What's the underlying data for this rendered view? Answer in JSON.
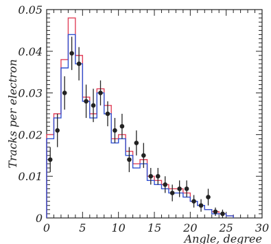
{
  "chart_data": {
    "type": "line",
    "title": "",
    "xlabel": "Angle, degree",
    "ylabel": "Tracks per electron",
    "xlim": [
      0,
      30
    ],
    "ylim": [
      0,
      0.05
    ],
    "x_ticks": [
      "0",
      "5",
      "10",
      "15",
      "20",
      "25",
      "30"
    ],
    "y_ticks": [
      "0",
      "0.01",
      "0.02",
      "0.03",
      "0.04",
      "0.05"
    ],
    "grid": false,
    "legend": "none",
    "bin_edges": [
      0,
      1,
      2,
      3,
      4,
      5,
      6,
      7,
      8,
      9,
      10,
      11,
      12,
      13,
      14,
      15,
      16,
      17,
      18,
      19,
      20,
      21,
      22,
      23,
      24,
      25,
      26
    ],
    "series": [
      {
        "kind": "histogram",
        "color": "#e0405a",
        "values": [
          0.02,
          0.025,
          0.038,
          0.048,
          0.039,
          0.029,
          0.025,
          0.031,
          0.027,
          0.019,
          0.02,
          0.016,
          0.013,
          0.014,
          0.01,
          0.009,
          0.008,
          0.007,
          0.007,
          0.006,
          0.004,
          0.003,
          0.002,
          0.0015,
          0.001,
          0.0005
        ]
      },
      {
        "kind": "histogram",
        "color": "#3050d0",
        "values": [
          0.019,
          0.024,
          0.036,
          0.044,
          0.037,
          0.028,
          0.024,
          0.03,
          0.025,
          0.018,
          0.019,
          0.015,
          0.012,
          0.013,
          0.009,
          0.008,
          0.007,
          0.006,
          0.006,
          0.005,
          0.004,
          0.003,
          0.002,
          0.001,
          0.001,
          0.0005
        ]
      },
      {
        "kind": "points",
        "color": "#222222",
        "x": [
          0.5,
          1.5,
          2.5,
          3.5,
          4.5,
          5.5,
          6.5,
          7.5,
          8.5,
          9.5,
          10.5,
          11.5,
          12.5,
          13.5,
          14.5,
          15.5,
          16.5,
          17.5,
          18.5,
          19.5,
          20.5,
          21.5,
          22.5,
          23.5,
          24.5
        ],
        "y": [
          0.014,
          0.021,
          0.03,
          0.0395,
          0.037,
          0.028,
          0.027,
          0.03,
          0.025,
          0.021,
          0.022,
          0.014,
          0.018,
          0.015,
          0.01,
          0.01,
          0.008,
          0.006,
          0.007,
          0.007,
          0.004,
          0.003,
          0.005,
          0.0015,
          0.001
        ],
        "err": [
          0.003,
          0.004,
          0.004,
          0.004,
          0.004,
          0.004,
          0.004,
          0.003,
          0.003,
          0.003,
          0.003,
          0.003,
          0.003,
          0.003,
          0.002,
          0.002,
          0.002,
          0.002,
          0.002,
          0.002,
          0.0015,
          0.0015,
          0.002,
          0.001,
          0.001
        ]
      }
    ]
  }
}
